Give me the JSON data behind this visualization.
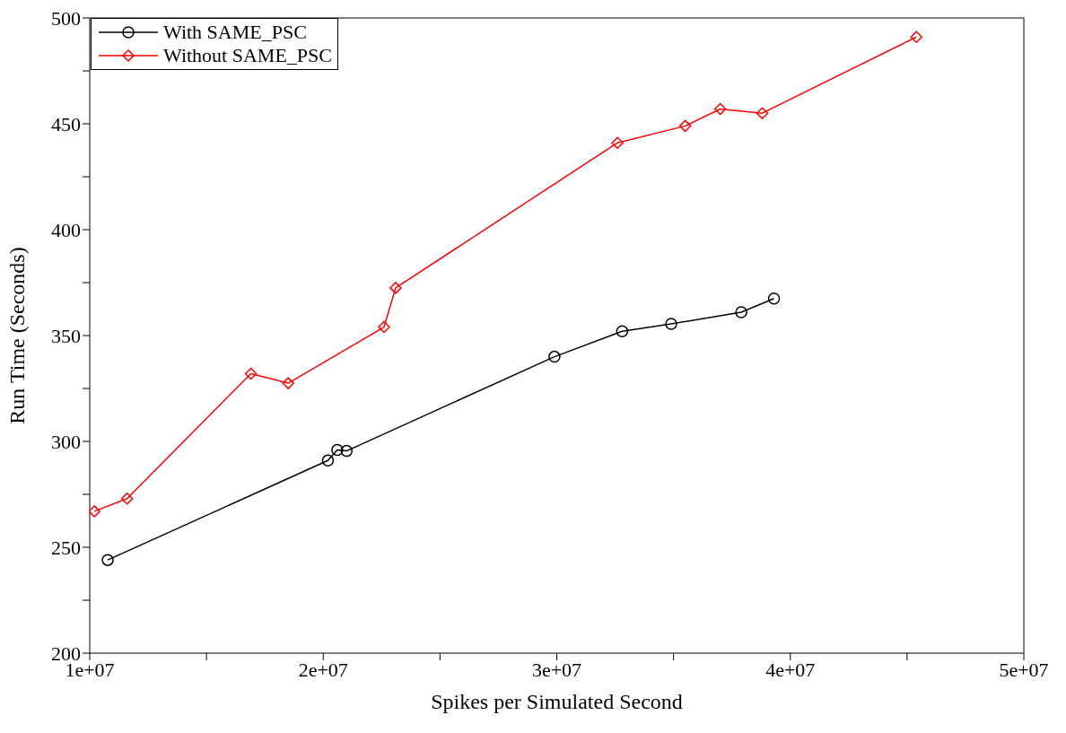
{
  "chart_data": {
    "type": "line",
    "xlabel": "Spikes per Simulated Second",
    "ylabel": "Run Time (Seconds)",
    "xlim": [
      10000000,
      50000000
    ],
    "xticks": [
      {
        "value": 10000000,
        "label": "1e+07"
      },
      {
        "value": 15000000,
        "label": null
      },
      {
        "value": 20000000,
        "label": "2e+07"
      },
      {
        "value": 25000000,
        "label": null
      },
      {
        "value": 30000000,
        "label": "3e+07"
      },
      {
        "value": 35000000,
        "label": null
      },
      {
        "value": 40000000,
        "label": "4e+07"
      },
      {
        "value": 45000000,
        "label": null
      },
      {
        "value": 50000000,
        "label": "5e+07"
      }
    ],
    "ylim": [
      200,
      500
    ],
    "yticks": [
      200,
      {
        "value": 225,
        "label": null
      },
      250,
      {
        "value": 275,
        "label": null
      },
      300,
      {
        "value": 325,
        "label": null
      },
      350,
      {
        "value": 375,
        "label": null
      },
      400,
      {
        "value": 425,
        "label": null
      },
      450,
      {
        "value": 475,
        "label": null
      },
      500
    ],
    "legend": "top left",
    "line_style": "solid",
    "series": [
      {
        "name": "With SAME_PSC",
        "color": "#000000",
        "marker": "circle",
        "x": [
          10770000,
          20200000,
          20600000,
          21000000,
          29900000,
          32800000,
          34900000,
          37900000,
          39300000
        ],
        "values": [
          244,
          291,
          296,
          295.5,
          340,
          352,
          355.5,
          361,
          367.5
        ]
      },
      {
        "name": "Without SAME_PSC",
        "color": "#ff0000",
        "marker": "diamond",
        "x": [
          10200000,
          11600000,
          16900000,
          18500000,
          22600000,
          23100000,
          32600000,
          35500000,
          37000000,
          38800000,
          45400000
        ],
        "values": [
          267,
          273,
          332,
          327.5,
          354,
          372.5,
          441,
          449,
          457,
          455,
          491
        ]
      }
    ]
  }
}
